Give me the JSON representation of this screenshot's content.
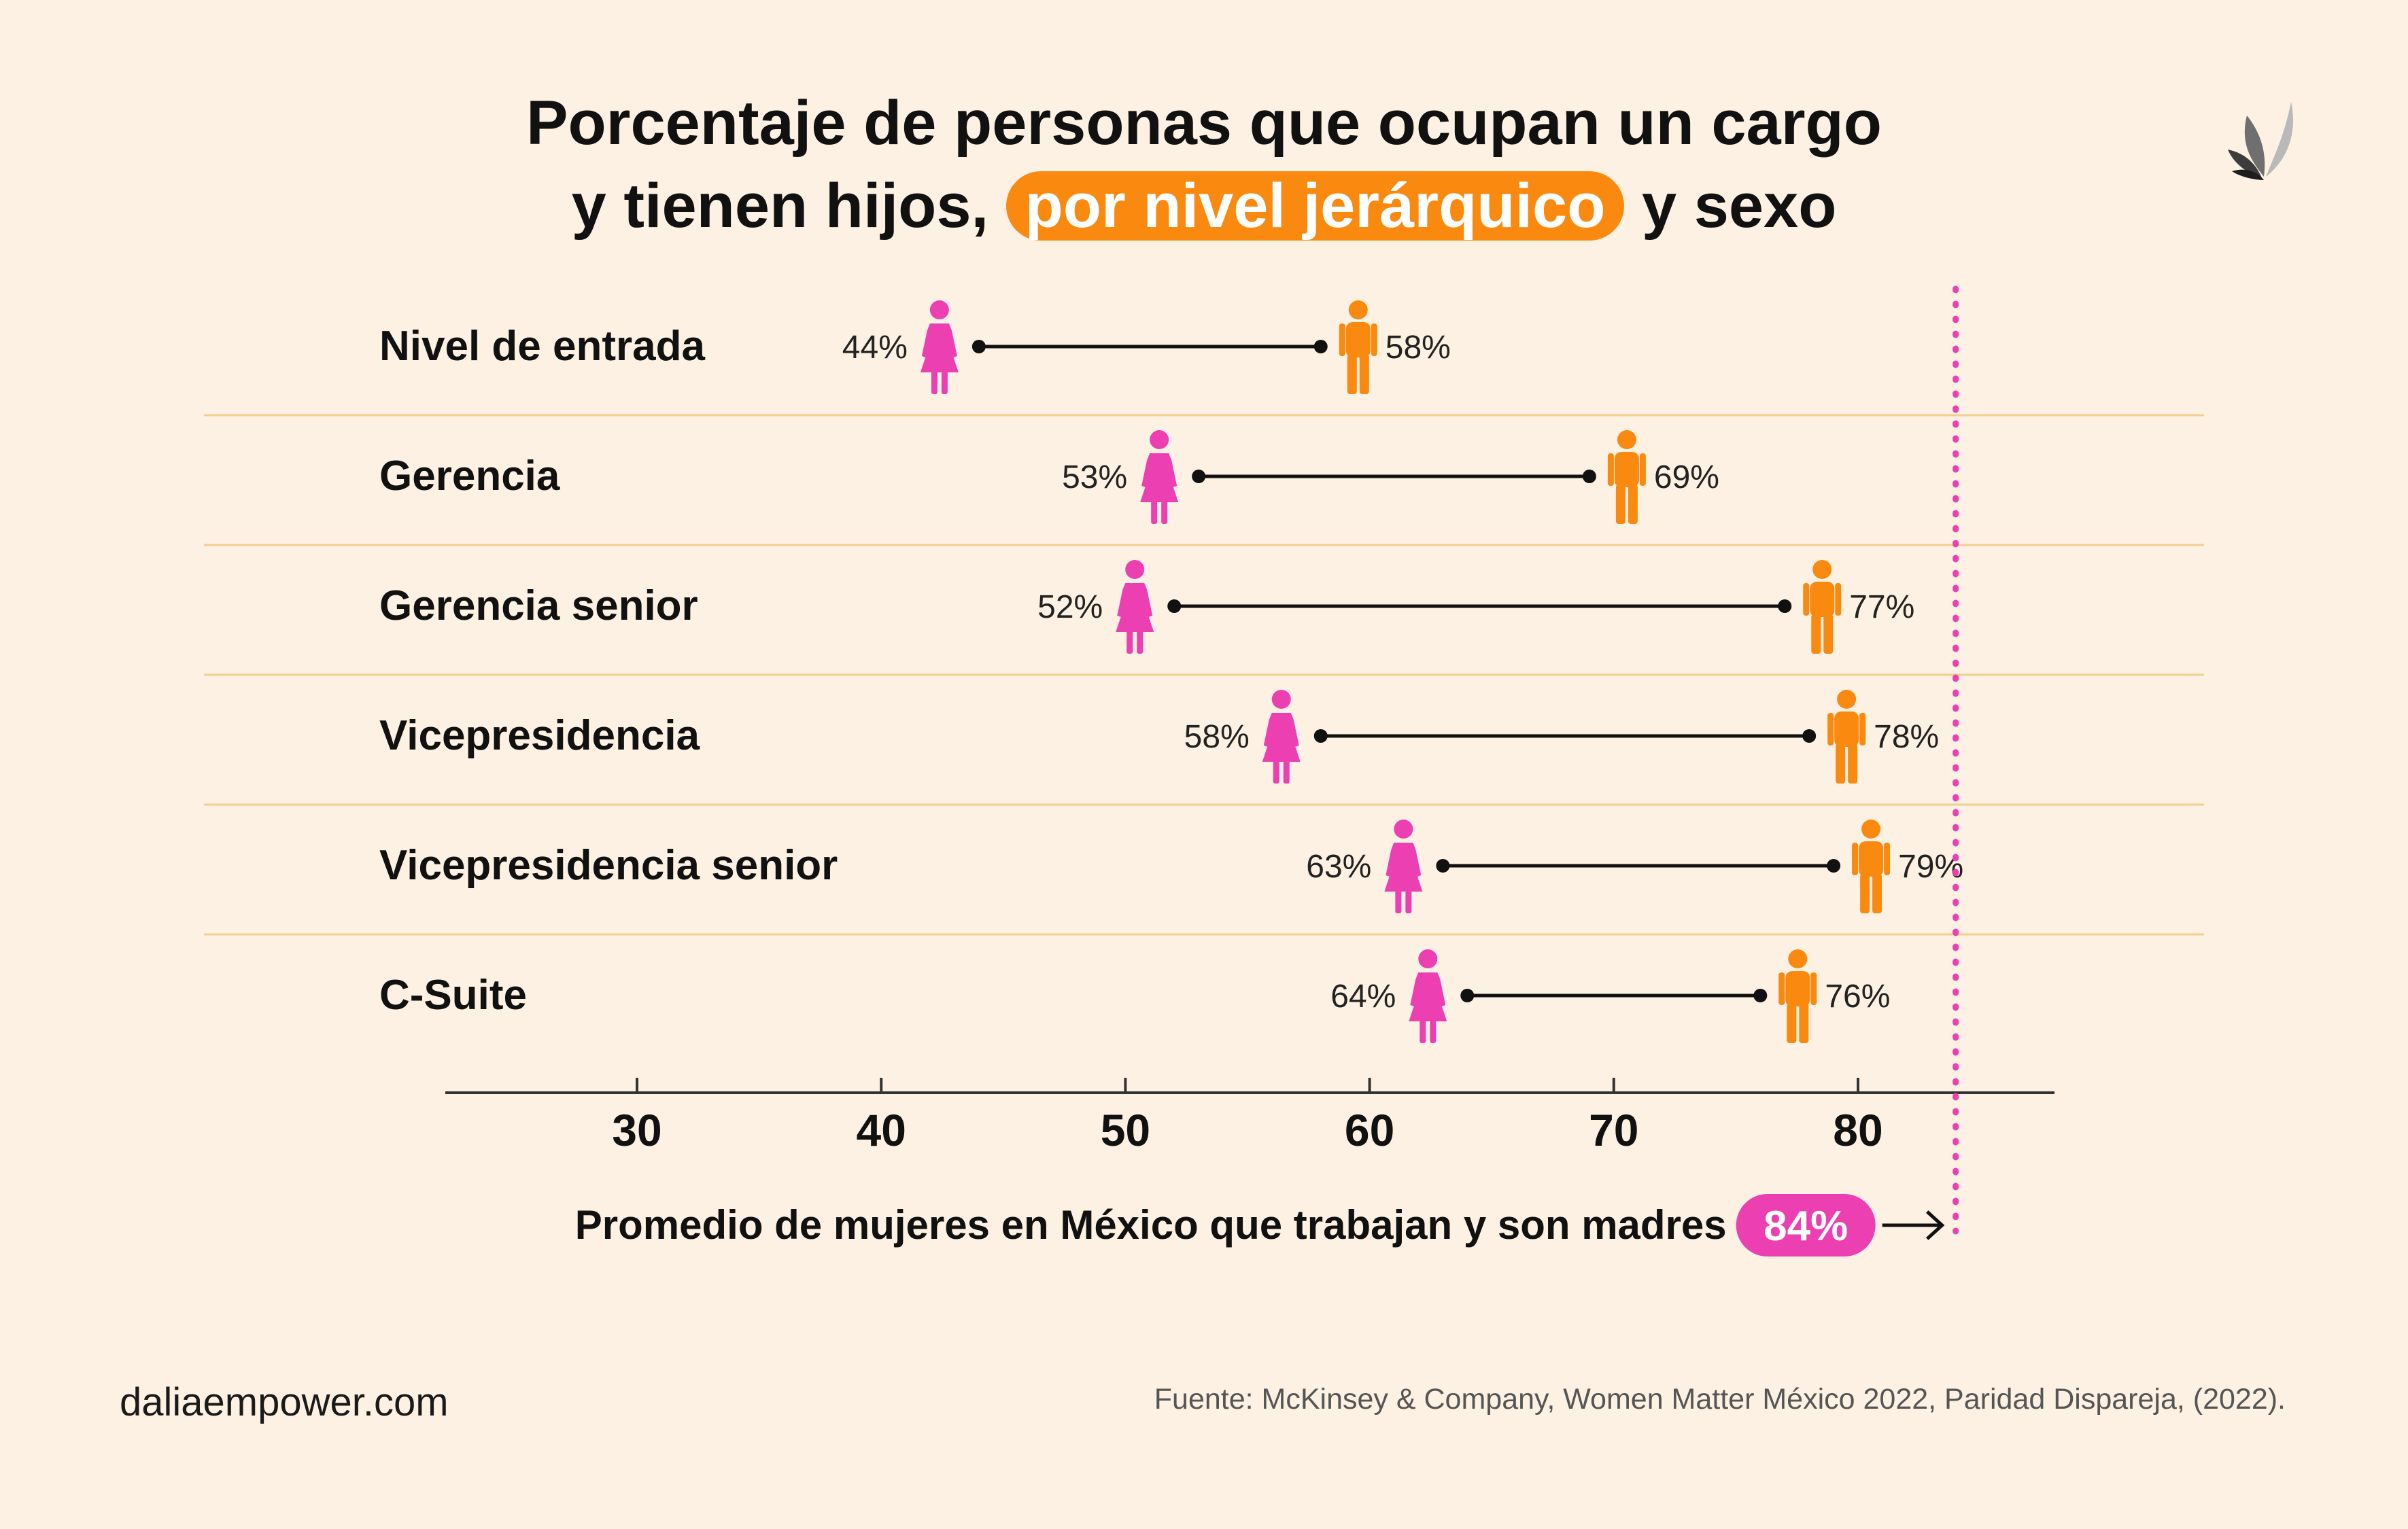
{
  "title": {
    "line1": "Porcentaje de personas que ocupan un cargo",
    "line2_start": "y tienen hijos,",
    "highlight": "por nivel jerárquico",
    "line2_end": "y sexo"
  },
  "colors": {
    "women": "#ec3fb2",
    "men": "#f9890f",
    "background": "#fdf1e3",
    "accent": "#f9890f"
  },
  "chart_data": {
    "type": "dumbbell",
    "categories": [
      "Nivel de entrada",
      "Gerencia",
      "Gerencia senior",
      "Vicepresidencia",
      "Vicepresidencia senior",
      "C-Suite"
    ],
    "series": [
      {
        "name": "Mujeres",
        "values": [
          44,
          53,
          52,
          58,
          63,
          64
        ],
        "labels": [
          "44%",
          "53%",
          "52%",
          "58%",
          "63%",
          "64%"
        ]
      },
      {
        "name": "Hombres",
        "values": [
          58,
          69,
          77,
          78,
          79,
          76
        ],
        "labels": [
          "58%",
          "69%",
          "77%",
          "78%",
          "79%",
          "76%"
        ]
      }
    ],
    "x_ticks": [
      30,
      40,
      50,
      60,
      70,
      80
    ],
    "x_tick_labels": [
      "30",
      "40",
      "50",
      "60",
      "70",
      "80"
    ],
    "xlim": [
      22,
      88
    ],
    "reference_line": {
      "value": 84,
      "label": "Promedio de mujeres en México que trabajan y son madres",
      "value_label": "84%"
    }
  },
  "footer": {
    "site": "daliaempower.com",
    "source": "Fuente: McKinsey & Company, Women Matter México 2022, Paridad Dispareja, (2022)."
  }
}
